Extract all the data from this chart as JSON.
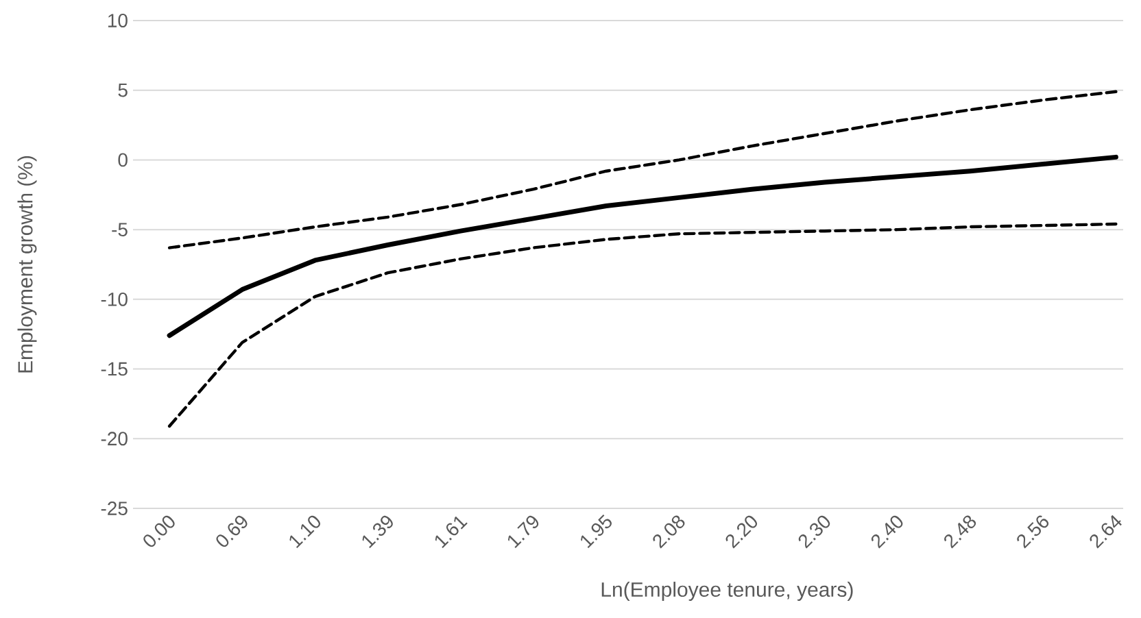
{
  "chart_data": {
    "type": "line",
    "xlabel": "Ln(Employee tenure, years)",
    "ylabel": "Employment growth (%)",
    "categories": [
      "0.00",
      "0.69",
      "1.10",
      "1.39",
      "1.61",
      "1.79",
      "1.95",
      "2.08",
      "2.20",
      "2.30",
      "2.40",
      "2.48",
      "2.56",
      "2.64"
    ],
    "series": [
      {
        "color": "#000000",
        "line_style": "solid",
        "values": [
          -12.6,
          -9.3,
          -7.2,
          -6.1,
          -5.1,
          -4.2,
          -3.3,
          -2.7,
          -2.1,
          -1.6,
          -1.2,
          -0.8,
          -0.3,
          0.2
        ]
      },
      {
        "color": "#000000",
        "line_style": "dashed",
        "values": [
          -6.3,
          -5.6,
          -4.8,
          -4.1,
          -3.2,
          -2.1,
          -0.8,
          0.0,
          1.0,
          1.9,
          2.8,
          3.6,
          4.3,
          4.9
        ]
      },
      {
        "color": "#000000",
        "line_style": "dashed",
        "values": [
          -19.1,
          -13.1,
          -9.8,
          -8.1,
          -7.1,
          -6.3,
          -5.7,
          -5.3,
          -5.2,
          -5.1,
          -5.0,
          -4.8,
          -4.7,
          -4.6
        ]
      }
    ],
    "ylim": [
      -25,
      10
    ],
    "yticks": [
      -25,
      -20,
      -15,
      -10,
      -5,
      0,
      5,
      10
    ],
    "grid": "y",
    "marker": "none"
  }
}
